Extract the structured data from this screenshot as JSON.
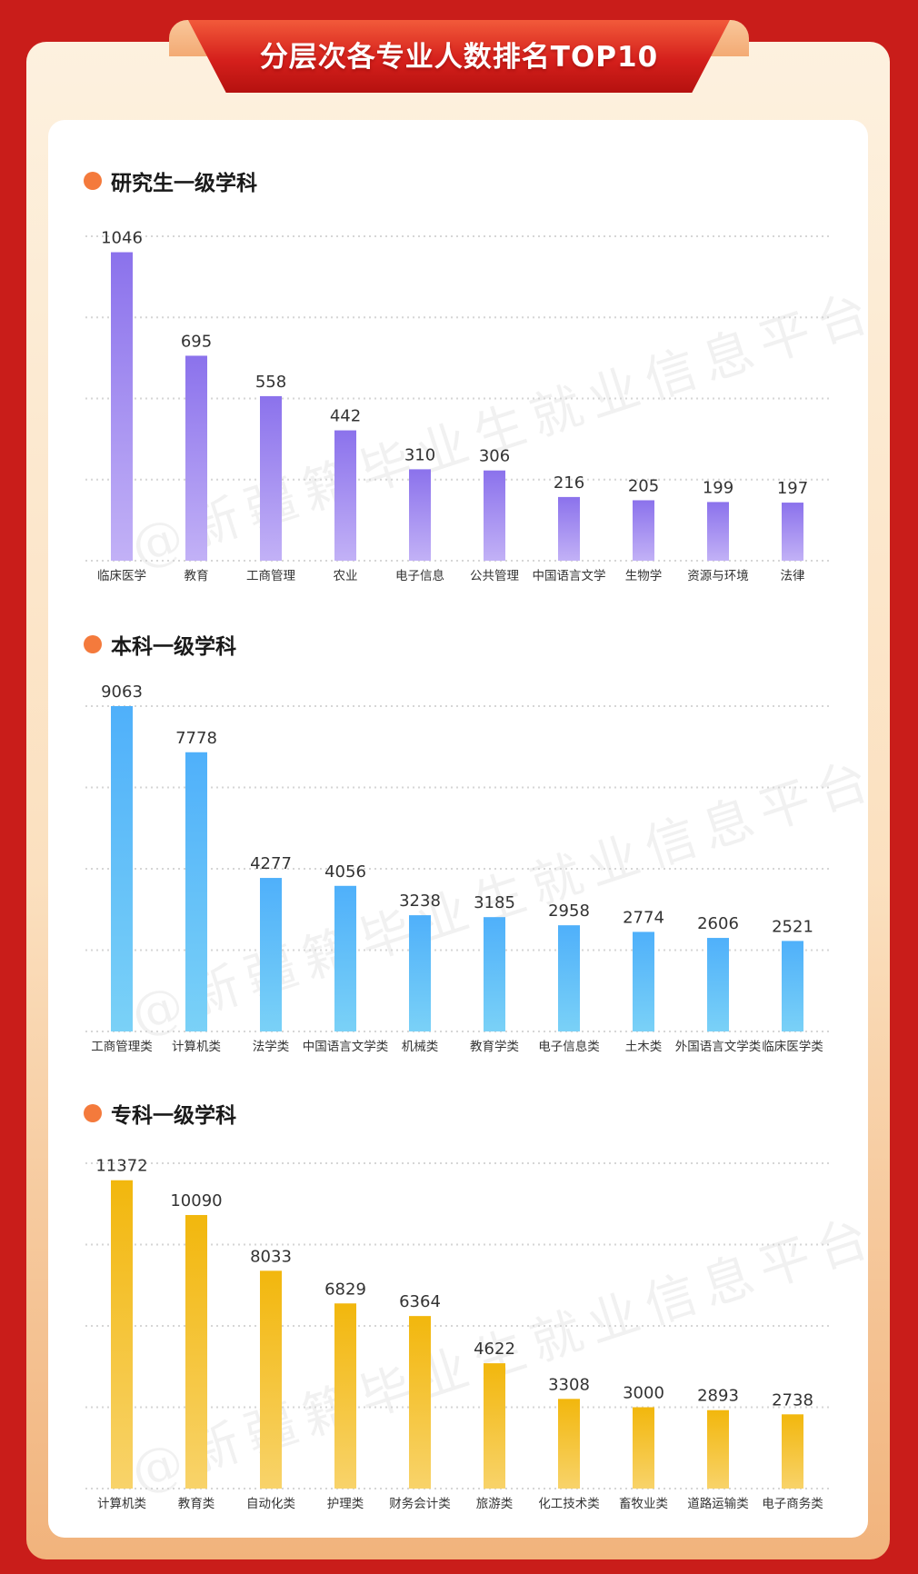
{
  "header": {
    "title": "分层次各专业人数排名TOP10"
  },
  "watermark": {
    "text": "@新疆籍毕业生就业信息平台"
  },
  "colors": {
    "background": "#c91d1a",
    "dot": "#f47a3c",
    "grad_purple_top": "#8b72ec",
    "grad_purple_bottom": "#c2b1f6",
    "grad_blue_top": "#4fb0fa",
    "grad_blue_bottom": "#7ad1f7",
    "grad_gold_top": "#f2b70d",
    "grad_gold_bottom": "#f8d36a"
  },
  "chart_data": [
    {
      "type": "bar",
      "title": "研究生一级学科",
      "categories": [
        "临床医学",
        "教育",
        "工商管理",
        "农业",
        "电子信息",
        "公共管理",
        "中国语言文学",
        "生物学",
        "资源与环境",
        "法律"
      ],
      "values": [
        1046,
        695,
        558,
        442,
        310,
        306,
        216,
        205,
        199,
        197
      ],
      "value_labels": [
        "1046",
        "695",
        "558",
        "442",
        "310",
        "306",
        "216",
        "205",
        "199",
        "197"
      ],
      "ylim": [
        0,
        1100
      ],
      "grid": true,
      "gradient": [
        "grad_purple_top",
        "grad_purple_bottom"
      ]
    },
    {
      "type": "bar",
      "title": "本科一级学科",
      "categories": [
        "工商管理类",
        "计算机类",
        "法学类",
        "中国语言文学类",
        "机械类",
        "教育学类",
        "电子信息类",
        "土木类",
        "外国语言文学类",
        "临床医学类"
      ],
      "values": [
        9063,
        7778,
        4277,
        4056,
        3238,
        3185,
        2958,
        2774,
        2606,
        2521
      ],
      "value_labels": [
        "9063",
        "7778",
        "4277",
        "4056",
        "3238",
        "3185",
        "2958",
        "2774",
        "2606",
        "2521"
      ],
      "ylim": [
        0,
        9063
      ],
      "grid": true,
      "gradient": [
        "grad_blue_top",
        "grad_blue_bottom"
      ]
    },
    {
      "type": "bar",
      "title": "专科一级学科",
      "categories": [
        "计算机类",
        "教育类",
        "自动化类",
        "护理类",
        "财务会计类",
        "旅游类",
        "化工技术类",
        "畜牧业类",
        "道路运输类",
        "电子商务类"
      ],
      "values": [
        11372,
        10090,
        8033,
        6829,
        6364,
        4622,
        3308,
        3000,
        2893,
        2738
      ],
      "value_labels": [
        "11372",
        "10090",
        "8033",
        "6829",
        "6364",
        "4622",
        "3308",
        "3000",
        "2893",
        "2738"
      ],
      "ylim": [
        0,
        12000
      ],
      "grid": true,
      "gradient": [
        "grad_gold_top",
        "grad_gold_bottom"
      ]
    }
  ]
}
